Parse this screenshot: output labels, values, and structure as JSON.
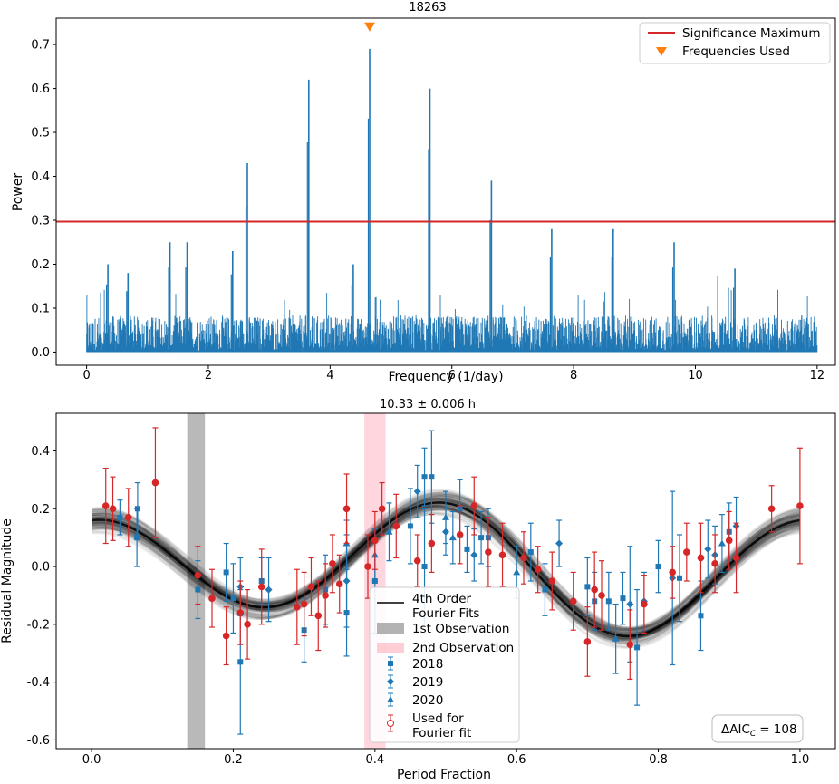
{
  "chart_data": [
    {
      "type": "line",
      "title": "18263",
      "xlabel": "Frequency (1/day)",
      "ylabel": "Power",
      "xlim": [
        -0.5,
        12.3
      ],
      "ylim": [
        -0.03,
        0.76
      ],
      "xticks": [
        0,
        2,
        4,
        6,
        8,
        10,
        12
      ],
      "yticks": [
        0.0,
        0.1,
        0.2,
        0.3,
        0.4,
        0.5,
        0.6,
        0.7
      ],
      "colors": {
        "series": "#1f77b4",
        "threshold": "#d62728",
        "marker": "#ff7f0e"
      },
      "noise_level": 0.07,
      "peaks": [
        {
          "x": 0.35,
          "power": 0.2
        },
        {
          "x": 0.68,
          "power": 0.18
        },
        {
          "x": 1.37,
          "power": 0.25
        },
        {
          "x": 1.65,
          "power": 0.25
        },
        {
          "x": 2.4,
          "power": 0.23
        },
        {
          "x": 2.64,
          "power": 0.43
        },
        {
          "x": 3.65,
          "power": 0.62
        },
        {
          "x": 4.38,
          "power": 0.2
        },
        {
          "x": 4.65,
          "power": 0.69
        },
        {
          "x": 5.64,
          "power": 0.6
        },
        {
          "x": 6.65,
          "power": 0.39
        },
        {
          "x": 7.64,
          "power": 0.28
        },
        {
          "x": 8.65,
          "power": 0.28
        },
        {
          "x": 9.65,
          "power": 0.25
        },
        {
          "x": 10.65,
          "power": 0.19
        }
      ],
      "significance_maximum": 0.297,
      "frequencies_used": [
        4.65
      ],
      "marker_power": 0.74,
      "legend": {
        "position": "top-right",
        "significance_label": "Significance Maximum",
        "frequencies_label": "Frequencies Used"
      }
    },
    {
      "type": "scatter",
      "title": "10.33 ± 0.006 h",
      "xlabel": "Period Fraction",
      "ylabel": "Residual Magnitude",
      "xlim": [
        -0.05,
        1.05
      ],
      "ylim": [
        -0.63,
        0.53
      ],
      "xticks": [
        0.0,
        0.2,
        0.4,
        0.6,
        0.8,
        1.0
      ],
      "yticks": [
        -0.6,
        -0.4,
        -0.2,
        0.0,
        0.2,
        0.4
      ],
      "colors": {
        "2018": "#1f77b4",
        "used": "#d62728",
        "fit": "#000000",
        "obs1": "#808080",
        "obs2": "#ffc0cb"
      },
      "fourier_model": {
        "mean": 0.0,
        "a1": -0.03,
        "b1": 0.05,
        "a2": 0.19,
        "b2": 0.0
      },
      "observation_1": [
        0.135,
        0.16
      ],
      "observation_2": [
        0.385,
        0.415
      ],
      "points_2018": [
        [
          0.04,
          0.17,
          0.06
        ],
        [
          0.065,
          0.2,
          0.09
        ],
        [
          0.064,
          0.1,
          0.1
        ],
        [
          0.15,
          -0.08,
          0.1
        ],
        [
          0.19,
          -0.02,
          0.1
        ],
        [
          0.2,
          -0.11,
          0.12
        ],
        [
          0.21,
          -0.33,
          0.25
        ],
        [
          0.24,
          -0.05,
          0.08
        ],
        [
          0.3,
          -0.22,
          0.11
        ],
        [
          0.33,
          -0.08,
          0.12
        ],
        [
          0.36,
          -0.16,
          0.15
        ],
        [
          0.4,
          -0.05,
          0.18
        ],
        [
          0.45,
          0.14,
          0.13
        ],
        [
          0.47,
          0.31,
          0.1
        ],
        [
          0.48,
          0.31,
          0.16
        ],
        [
          0.47,
          0.0,
          0.2
        ],
        [
          0.52,
          0.2,
          0.1
        ],
        [
          0.53,
          0.06,
          0.08
        ],
        [
          0.55,
          0.1,
          0.09
        ],
        [
          0.56,
          0.1,
          0.1
        ],
        [
          0.62,
          0.05,
          0.1
        ],
        [
          0.64,
          -0.08,
          0.09
        ],
        [
          0.7,
          -0.07,
          0.1
        ],
        [
          0.71,
          -0.12,
          0.1
        ],
        [
          0.73,
          -0.12,
          0.1
        ],
        [
          0.75,
          -0.11,
          0.09
        ],
        [
          0.77,
          -0.28,
          0.2
        ],
        [
          0.8,
          0.0,
          0.09
        ],
        [
          0.83,
          -0.04,
          0.15
        ],
        [
          0.86,
          -0.17,
          0.12
        ],
        [
          0.9,
          0.12,
          0.1
        ]
      ],
      "points_2019": [
        [
          0.21,
          -0.07,
          0.1
        ],
        [
          0.25,
          -0.08,
          0.11
        ],
        [
          0.36,
          -0.05,
          0.16
        ],
        [
          0.46,
          0.26,
          0.09
        ],
        [
          0.5,
          0.12,
          0.08
        ],
        [
          0.54,
          0.04,
          0.09
        ],
        [
          0.66,
          0.08,
          0.08
        ],
        [
          0.76,
          -0.13,
          0.2
        ],
        [
          0.78,
          -0.12,
          0.1
        ],
        [
          0.82,
          -0.04,
          0.3
        ],
        [
          0.88,
          0.04,
          0.1
        ],
        [
          0.87,
          0.06,
          0.1
        ],
        [
          0.91,
          0.14,
          0.1
        ]
      ],
      "points_2020": [
        [
          0.36,
          0.08,
          0.08
        ],
        [
          0.4,
          0.04,
          0.09
        ],
        [
          0.42,
          0.12,
          0.1
        ],
        [
          0.5,
          0.17,
          0.09
        ],
        [
          0.51,
          0.1,
          0.09
        ],
        [
          0.6,
          -0.02,
          0.09
        ],
        [
          0.74,
          -0.25,
          0.12
        ],
        [
          0.89,
          0.08,
          0.1
        ]
      ],
      "points_used": [
        [
          0.02,
          0.21,
          0.13
        ],
        [
          0.03,
          0.2,
          0.11
        ],
        [
          0.052,
          0.17,
          0.1
        ],
        [
          0.09,
          0.29,
          0.19
        ],
        [
          0.15,
          -0.03,
          0.1
        ],
        [
          0.17,
          -0.11,
          0.1
        ],
        [
          0.19,
          -0.24,
          0.1
        ],
        [
          0.21,
          -0.16,
          0.11
        ],
        [
          0.22,
          -0.2,
          0.12
        ],
        [
          0.24,
          -0.07,
          0.13
        ],
        [
          0.29,
          -0.14,
          0.13
        ],
        [
          0.3,
          -0.13,
          0.11
        ],
        [
          0.31,
          -0.07,
          0.1
        ],
        [
          0.32,
          -0.17,
          0.12
        ],
        [
          0.33,
          -0.1,
          0.11
        ],
        [
          0.34,
          0.01,
          0.1
        ],
        [
          0.35,
          -0.06,
          0.1
        ],
        [
          0.36,
          0.2,
          0.12
        ],
        [
          0.39,
          0.0,
          0.11
        ],
        [
          0.4,
          0.09,
          0.1
        ],
        [
          0.41,
          0.2,
          0.09
        ],
        [
          0.43,
          0.14,
          0.11
        ],
        [
          0.46,
          0.02,
          0.09
        ],
        [
          0.48,
          0.08,
          0.1
        ],
        [
          0.52,
          0.11,
          0.1
        ],
        [
          0.54,
          0.21,
          0.1
        ],
        [
          0.56,
          0.05,
          0.12
        ],
        [
          0.58,
          0.04,
          0.11
        ],
        [
          0.61,
          0.03,
          0.09
        ],
        [
          0.63,
          -0.01,
          0.08
        ],
        [
          0.65,
          -0.05,
          0.1
        ],
        [
          0.68,
          -0.12,
          0.1
        ],
        [
          0.7,
          -0.26,
          0.12
        ],
        [
          0.71,
          -0.08,
          0.13
        ],
        [
          0.72,
          -0.1,
          0.12
        ],
        [
          0.76,
          -0.27,
          0.12
        ],
        [
          0.78,
          -0.13,
          0.1
        ],
        [
          0.82,
          -0.02,
          0.09
        ],
        [
          0.84,
          0.05,
          0.1
        ],
        [
          0.86,
          0.03,
          0.12
        ],
        [
          0.88,
          0.01,
          0.1
        ],
        [
          0.9,
          0.09,
          0.1
        ],
        [
          0.91,
          0.03,
          0.12
        ],
        [
          0.96,
          0.2,
          0.08
        ],
        [
          1.0,
          0.21,
          0.2
        ]
      ],
      "legend": {
        "position": "lower-center",
        "fit_label_1": "4th Order",
        "fit_label_2": "Fourier Fits",
        "obs1_label": "1st Observation",
        "obs2_label": "2nd Observation",
        "label_2018": "2018",
        "label_2019": "2019",
        "label_2020": "2020",
        "used_label_1": "Used for",
        "used_label_2": "Fourier fit"
      },
      "aic_label": "ΔAIC",
      "aic_subscript": "C",
      "aic_value": "= 108"
    }
  ]
}
